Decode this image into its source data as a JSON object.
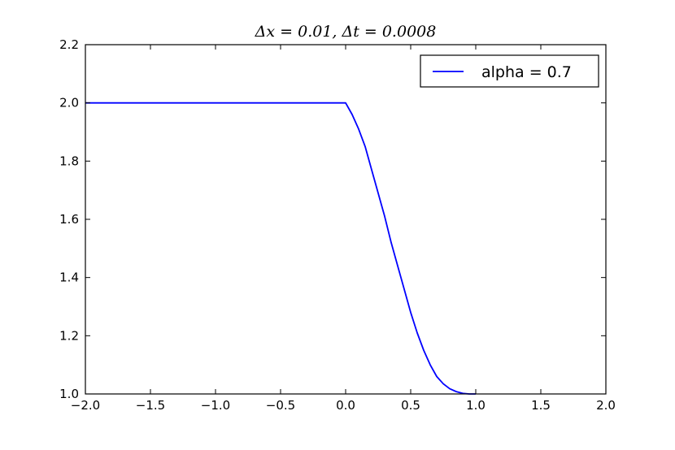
{
  "chart_data": {
    "type": "line",
    "title": "Δx = 0.01, Δt = 0.0008",
    "xlabel": "",
    "ylabel": "",
    "xlim": [
      -2.0,
      2.0
    ],
    "ylim": [
      1.0,
      2.2
    ],
    "xticks": [
      -2.0,
      -1.5,
      -1.0,
      -0.5,
      0.0,
      0.5,
      1.0,
      1.5,
      2.0
    ],
    "xtick_labels": [
      "−2.0",
      "−1.5",
      "−1.0",
      "−0.5",
      "0.0",
      "0.5",
      "1.0",
      "1.5",
      "2.0"
    ],
    "yticks": [
      1.0,
      1.2,
      1.4,
      1.6,
      1.8,
      2.0,
      2.2
    ],
    "ytick_labels": [
      "1.0",
      "1.2",
      "1.4",
      "1.6",
      "1.8",
      "2.0",
      "2.2"
    ],
    "grid": false,
    "legend_position": "top-right",
    "series": [
      {
        "name": "alpha = 0.7",
        "color": "#0000ff",
        "x": [
          -2.0,
          -1.5,
          -1.0,
          -0.5,
          0.0,
          0.05,
          0.1,
          0.15,
          0.2,
          0.25,
          0.3,
          0.35,
          0.4,
          0.45,
          0.5,
          0.55,
          0.6,
          0.65,
          0.7,
          0.75,
          0.8,
          0.85,
          0.9,
          0.95,
          1.0
        ],
        "y": [
          2.0,
          2.0,
          2.0,
          2.0,
          2.0,
          1.96,
          1.91,
          1.85,
          1.77,
          1.69,
          1.61,
          1.52,
          1.44,
          1.36,
          1.28,
          1.21,
          1.15,
          1.1,
          1.06,
          1.035,
          1.018,
          1.008,
          1.002,
          1.0,
          1.0
        ]
      }
    ]
  }
}
